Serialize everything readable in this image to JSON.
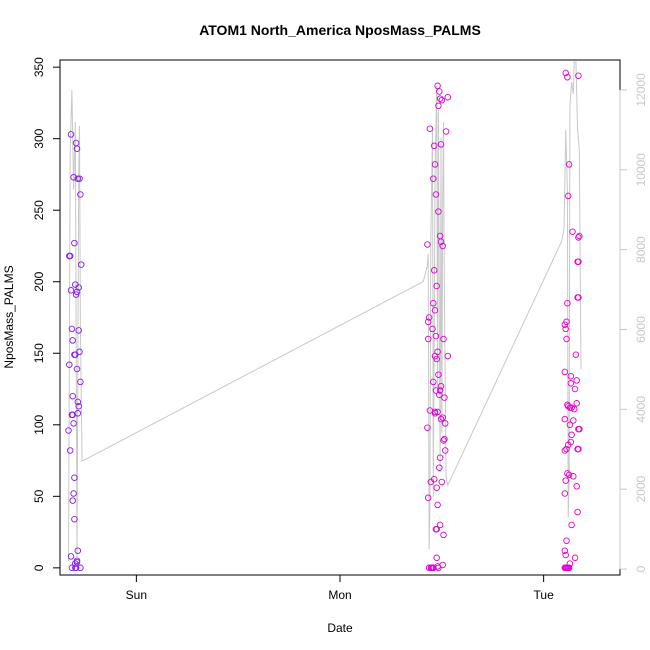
{
  "chart_data": {
    "type": "scatter",
    "title": "ATOM1 North_America NposMass_PALMS",
    "xlabel": "Date",
    "ylabel": "NposMass_PALMS",
    "x_ticks": [
      {
        "label": "Sun",
        "hours": 0
      },
      {
        "label": "Mon",
        "hours": 24
      },
      {
        "label": "Tue",
        "hours": 48
      }
    ],
    "xlim_hours": [
      -9.0,
      57.0
    ],
    "ylim": [
      -5,
      355
    ],
    "y_ticks": [
      0,
      50,
      100,
      150,
      200,
      250,
      300,
      350
    ],
    "y2lim": [
      -150,
      12750
    ],
    "y2_ticks": [
      0,
      2000,
      4000,
      6000,
      8000,
      10000,
      12000
    ],
    "grid": false,
    "legend": "none",
    "colors": {
      "early": "#7a1ff0",
      "late": "#ee00cc",
      "line": "#c8c8c8"
    },
    "series": [
      {
        "points": [
          {
            "t": -7.9,
            "y": 218
          },
          {
            "t": -7.8,
            "y": 218
          },
          {
            "t": -7.7,
            "y": 194
          },
          {
            "t": -7.9,
            "y": 142
          },
          {
            "t": -8.0,
            "y": 96
          },
          {
            "t": -7.8,
            "y": 82
          },
          {
            "t": -7.6,
            "y": 167
          },
          {
            "t": -7.5,
            "y": 159
          },
          {
            "t": -7.7,
            "y": 303
          },
          {
            "t": -7.4,
            "y": 273
          },
          {
            "t": -7.3,
            "y": 227
          },
          {
            "t": -7.2,
            "y": 198
          },
          {
            "t": -7.1,
            "y": 297
          },
          {
            "t": -7.0,
            "y": 293
          },
          {
            "t": -6.9,
            "y": 272
          },
          {
            "t": -6.7,
            "y": 272
          },
          {
            "t": -6.6,
            "y": 261
          },
          {
            "t": -6.5,
            "y": 212
          },
          {
            "t": -6.8,
            "y": 196
          },
          {
            "t": -7.0,
            "y": 193
          },
          {
            "t": -7.1,
            "y": 191
          },
          {
            "t": -6.8,
            "y": 166
          },
          {
            "t": -6.7,
            "y": 151
          },
          {
            "t": -7.2,
            "y": 149
          },
          {
            "t": -7.3,
            "y": 149
          },
          {
            "t": -7.0,
            "y": 139
          },
          {
            "t": -6.6,
            "y": 130
          },
          {
            "t": -7.5,
            "y": 120
          },
          {
            "t": -7.6,
            "y": 107
          },
          {
            "t": -7.5,
            "y": 107
          },
          {
            "t": -7.4,
            "y": 101
          },
          {
            "t": -6.9,
            "y": 116
          },
          {
            "t": -6.8,
            "y": 113
          },
          {
            "t": -6.9,
            "y": 108
          },
          {
            "t": -7.3,
            "y": 63
          },
          {
            "t": -7.4,
            "y": 52
          },
          {
            "t": -7.5,
            "y": 47
          },
          {
            "t": -7.3,
            "y": 34
          },
          {
            "t": -6.9,
            "y": 12
          },
          {
            "t": -7.7,
            "y": 8
          },
          {
            "t": -7.0,
            "y": 4
          },
          {
            "t": -7.2,
            "y": 3
          },
          {
            "t": -7.6,
            "y": 0
          },
          {
            "t": -7.1,
            "y": 0
          },
          {
            "t": -6.6,
            "y": 0
          },
          {
            "t": -7.2,
            "y": 0
          },
          {
            "t": -7.0,
            "y": 5
          }
        ]
      },
      {
        "points": [
          {
            "t": 34.3,
            "y": 226
          },
          {
            "t": 34.4,
            "y": 172
          },
          {
            "t": 34.5,
            "y": 175
          },
          {
            "t": 34.4,
            "y": 160
          },
          {
            "t": 34.6,
            "y": 307
          },
          {
            "t": 34.3,
            "y": 98
          },
          {
            "t": 34.6,
            "y": 110
          },
          {
            "t": 34.7,
            "y": 60
          },
          {
            "t": 34.4,
            "y": 49
          },
          {
            "t": 34.5,
            "y": 0
          },
          {
            "t": 34.7,
            "y": 0
          },
          {
            "t": 34.8,
            "y": 0
          },
          {
            "t": 34.9,
            "y": 0
          },
          {
            "t": 35.0,
            "y": 0
          },
          {
            "t": 35.1,
            "y": 295
          },
          {
            "t": 35.0,
            "y": 272
          },
          {
            "t": 35.2,
            "y": 282
          },
          {
            "t": 35.3,
            "y": 261
          },
          {
            "t": 35.5,
            "y": 337
          },
          {
            "t": 35.7,
            "y": 333
          },
          {
            "t": 35.6,
            "y": 323
          },
          {
            "t": 35.8,
            "y": 328
          },
          {
            "t": 36.0,
            "y": 327
          },
          {
            "t": 35.9,
            "y": 296
          },
          {
            "t": 35.6,
            "y": 249
          },
          {
            "t": 35.8,
            "y": 232
          },
          {
            "t": 35.9,
            "y": 228
          },
          {
            "t": 36.1,
            "y": 225
          },
          {
            "t": 35.1,
            "y": 208
          },
          {
            "t": 35.0,
            "y": 185
          },
          {
            "t": 35.4,
            "y": 197
          },
          {
            "t": 35.2,
            "y": 180
          },
          {
            "t": 34.9,
            "y": 167
          },
          {
            "t": 35.3,
            "y": 162
          },
          {
            "t": 35.5,
            "y": 151
          },
          {
            "t": 35.2,
            "y": 148
          },
          {
            "t": 35.4,
            "y": 146
          },
          {
            "t": 35.0,
            "y": 130
          },
          {
            "t": 35.3,
            "y": 124
          },
          {
            "t": 35.6,
            "y": 135
          },
          {
            "t": 35.7,
            "y": 121
          },
          {
            "t": 35.9,
            "y": 127
          },
          {
            "t": 35.8,
            "y": 124
          },
          {
            "t": 36.2,
            "y": 160
          },
          {
            "t": 36.3,
            "y": 119
          },
          {
            "t": 36.1,
            "y": 105
          },
          {
            "t": 35.5,
            "y": 109
          },
          {
            "t": 35.2,
            "y": 108
          },
          {
            "t": 36.4,
            "y": 101
          },
          {
            "t": 35.9,
            "y": 104
          },
          {
            "t": 35.8,
            "y": 77
          },
          {
            "t": 36.2,
            "y": 89
          },
          {
            "t": 36.3,
            "y": 90
          },
          {
            "t": 35.7,
            "y": 70
          },
          {
            "t": 35.4,
            "y": 56
          },
          {
            "t": 35.1,
            "y": 62
          },
          {
            "t": 36.0,
            "y": 60
          },
          {
            "t": 35.5,
            "y": 44
          },
          {
            "t": 35.8,
            "y": 30
          },
          {
            "t": 36.2,
            "y": 23
          },
          {
            "t": 35.3,
            "y": 27
          },
          {
            "t": 35.4,
            "y": 27
          },
          {
            "t": 35.4,
            "y": 7
          },
          {
            "t": 35.5,
            "y": 1
          },
          {
            "t": 35.6,
            "y": 0
          },
          {
            "t": 36.1,
            "y": 2
          },
          {
            "t": 36.5,
            "y": 305
          },
          {
            "t": 36.7,
            "y": 329
          },
          {
            "t": 36.7,
            "y": 148
          },
          {
            "t": 36.4,
            "y": 82
          },
          {
            "t": 35.0,
            "y": 0
          },
          {
            "t": 35.2,
            "y": 109
          }
        ]
      },
      {
        "points": [
          {
            "t": 50.6,
            "y": 346
          },
          {
            "t": 50.8,
            "y": 343
          },
          {
            "t": 52.1,
            "y": 344
          },
          {
            "t": 51.0,
            "y": 282
          },
          {
            "t": 50.9,
            "y": 260
          },
          {
            "t": 51.4,
            "y": 235
          },
          {
            "t": 52.1,
            "y": 231
          },
          {
            "t": 52.2,
            "y": 232
          },
          {
            "t": 52.0,
            "y": 214
          },
          {
            "t": 52.1,
            "y": 214
          },
          {
            "t": 52.0,
            "y": 189
          },
          {
            "t": 52.1,
            "y": 189
          },
          {
            "t": 50.8,
            "y": 185
          },
          {
            "t": 50.7,
            "y": 172
          },
          {
            "t": 50.5,
            "y": 170
          },
          {
            "t": 50.6,
            "y": 167
          },
          {
            "t": 50.7,
            "y": 160
          },
          {
            "t": 51.8,
            "y": 149
          },
          {
            "t": 50.5,
            "y": 137
          },
          {
            "t": 51.2,
            "y": 134
          },
          {
            "t": 51.2,
            "y": 129
          },
          {
            "t": 51.9,
            "y": 131
          },
          {
            "t": 51.7,
            "y": 125
          },
          {
            "t": 50.8,
            "y": 114
          },
          {
            "t": 50.9,
            "y": 113
          },
          {
            "t": 51.1,
            "y": 112
          },
          {
            "t": 51.3,
            "y": 112
          },
          {
            "t": 51.6,
            "y": 111
          },
          {
            "t": 51.9,
            "y": 115
          },
          {
            "t": 51.5,
            "y": 103
          },
          {
            "t": 50.5,
            "y": 104
          },
          {
            "t": 51.1,
            "y": 100
          },
          {
            "t": 51.3,
            "y": 93
          },
          {
            "t": 50.9,
            "y": 86
          },
          {
            "t": 50.7,
            "y": 83
          },
          {
            "t": 50.5,
            "y": 82
          },
          {
            "t": 51.2,
            "y": 88
          },
          {
            "t": 52.1,
            "y": 97
          },
          {
            "t": 52.2,
            "y": 97
          },
          {
            "t": 52.0,
            "y": 83
          },
          {
            "t": 52.1,
            "y": 83
          },
          {
            "t": 50.8,
            "y": 66
          },
          {
            "t": 51.0,
            "y": 65
          },
          {
            "t": 51.5,
            "y": 64
          },
          {
            "t": 50.6,
            "y": 61
          },
          {
            "t": 51.9,
            "y": 57
          },
          {
            "t": 50.5,
            "y": 52
          },
          {
            "t": 52.0,
            "y": 39
          },
          {
            "t": 51.3,
            "y": 30
          },
          {
            "t": 50.7,
            "y": 19
          },
          {
            "t": 50.5,
            "y": 12
          },
          {
            "t": 50.6,
            "y": 9
          },
          {
            "t": 51.7,
            "y": 7
          },
          {
            "t": 51.1,
            "y": 3
          },
          {
            "t": 50.5,
            "y": 0
          },
          {
            "t": 50.7,
            "y": 0
          },
          {
            "t": 50.8,
            "y": 0
          },
          {
            "t": 50.9,
            "y": 0
          },
          {
            "t": 51.0,
            "y": 0
          },
          {
            "t": 50.6,
            "y": 0
          }
        ]
      }
    ],
    "line_y2": [
      {
        "t": -8.0,
        "v": 200
      },
      {
        "t": -7.8,
        "v": 10500
      },
      {
        "t": -7.6,
        "v": 12000
      },
      {
        "t": -7.4,
        "v": 9500
      },
      {
        "t": -7.2,
        "v": 11200
      },
      {
        "t": -7.0,
        "v": 300
      },
      {
        "t": -6.8,
        "v": 9800
      },
      {
        "t": -6.7,
        "v": 11100
      },
      {
        "t": -6.6,
        "v": 6000
      },
      {
        "t": -6.4,
        "v": 2700
      },
      {
        "t": 33.8,
        "v": 7200
      },
      {
        "t": 34.3,
        "v": 7600
      },
      {
        "t": 34.4,
        "v": 7900
      },
      {
        "t": 34.5,
        "v": 500
      },
      {
        "t": 34.6,
        "v": 1500
      },
      {
        "t": 34.7,
        "v": 8200
      },
      {
        "t": 34.9,
        "v": 11000
      },
      {
        "t": 35.0,
        "v": 1800
      },
      {
        "t": 35.2,
        "v": 9800
      },
      {
        "t": 35.4,
        "v": 12100
      },
      {
        "t": 35.5,
        "v": 4500
      },
      {
        "t": 35.6,
        "v": 11500
      },
      {
        "t": 35.8,
        "v": 2500
      },
      {
        "t": 35.9,
        "v": 10800
      },
      {
        "t": 36.0,
        "v": 3400
      },
      {
        "t": 36.1,
        "v": 9200
      },
      {
        "t": 36.2,
        "v": 11200
      },
      {
        "t": 36.3,
        "v": 6800
      },
      {
        "t": 36.5,
        "v": 2300
      },
      {
        "t": 36.7,
        "v": 2100
      },
      {
        "t": 50.1,
        "v": 8200
      },
      {
        "t": 50.4,
        "v": 8500
      },
      {
        "t": 50.6,
        "v": 11000
      },
      {
        "t": 50.8,
        "v": 9500
      },
      {
        "t": 50.9,
        "v": 1300
      },
      {
        "t": 51.0,
        "v": 2200
      },
      {
        "t": 51.1,
        "v": 11600
      },
      {
        "t": 51.3,
        "v": 12200
      },
      {
        "t": 51.5,
        "v": 11900
      },
      {
        "t": 51.6,
        "v": 12700
      },
      {
        "t": 51.8,
        "v": 12700
      },
      {
        "t": 52.0,
        "v": 11000
      },
      {
        "t": 52.2,
        "v": 10500
      },
      {
        "t": 52.4,
        "v": 5000
      }
    ]
  }
}
